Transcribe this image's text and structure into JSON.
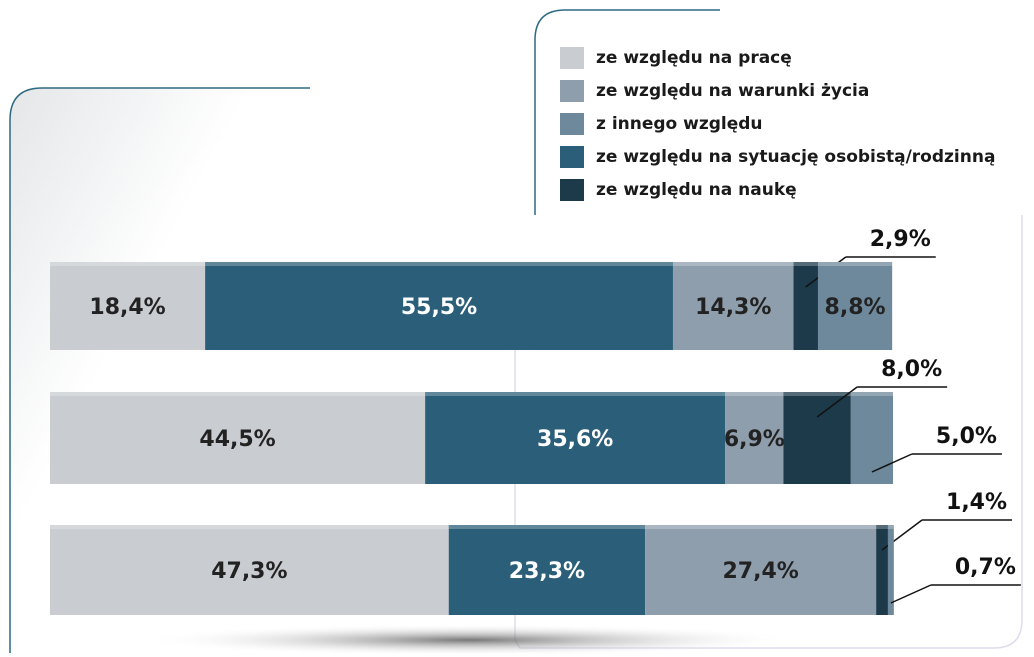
{
  "chart_data": {
    "type": "stacked-bar-horizontal",
    "xlim": [
      0,
      100
    ],
    "series": [
      {
        "name": "ze względu na pracę",
        "color": "#c9cdd1",
        "values": [
          18.4,
          44.5,
          47.3
        ],
        "value_labels": [
          "18,4%",
          "44,5%",
          "47,3%"
        ]
      },
      {
        "name": "ze względu na warunki życia",
        "color": "#8e9eac",
        "values": [
          14.3,
          6.9,
          27.4
        ],
        "value_labels": [
          "14,3%",
          "6,9%",
          "27,4%"
        ]
      },
      {
        "name": "z innego względu",
        "color": "#6e899b",
        "values": [
          8.8,
          5.0,
          0.7
        ],
        "value_labels": [
          "8,8%",
          "5,0%",
          "0,7%"
        ]
      },
      {
        "name": "ze względu na sytuację osobistą/rodzinną",
        "color": "#2b5f79",
        "values": [
          55.5,
          35.6,
          23.3
        ],
        "value_labels": [
          "55,5%",
          "35,6%",
          "23,3%"
        ]
      },
      {
        "name": "ze względu na naukę",
        "color": "#1d3a4a",
        "values": [
          2.9,
          8.0,
          1.4
        ],
        "value_labels": [
          "2,9%",
          "8,0%",
          "1,4%"
        ]
      }
    ]
  }
}
